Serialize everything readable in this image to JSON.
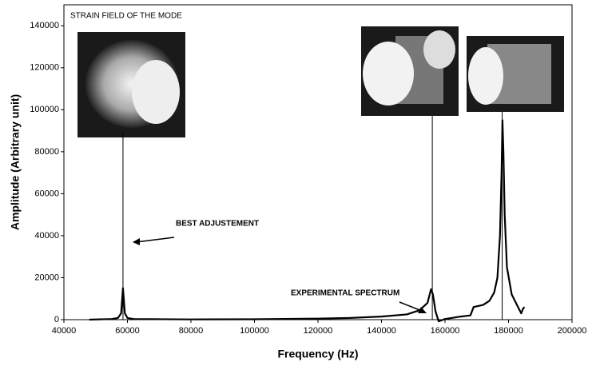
{
  "chart_data": {
    "type": "line",
    "x_label": "Frequency (Hz)",
    "y_label": "Amplitude (Arbitrary unit)",
    "annotations": [
      "STRAIN FIELD OF THE MODE"
    ],
    "xlim": [
      40000,
      200000
    ],
    "xticks": [
      40000,
      60000,
      80000,
      100000,
      120000,
      140000,
      160000,
      180000,
      200000
    ],
    "ylim": [
      0,
      150000
    ],
    "yticks": [
      0,
      20000,
      40000,
      60000,
      80000,
      100000,
      120000,
      140000
    ],
    "series": [
      {
        "name": "EXPERIMENTAL SPECTRUM",
        "color": "#000000",
        "x": [
          48000,
          55000,
          57000,
          58000,
          58600,
          59200,
          60000,
          62000,
          80000,
          100000,
          120000,
          130000,
          140000,
          148000,
          152000,
          154500,
          155600,
          156200,
          157000,
          158000,
          160000,
          165000,
          168000,
          169000,
          172000,
          174000,
          175500,
          176500,
          177300,
          177800,
          178100,
          178400,
          178800,
          179500,
          181000,
          183000,
          184000,
          184500,
          185000
        ],
        "values": [
          0,
          300,
          800,
          3000,
          15000,
          3000,
          800,
          300,
          100,
          200,
          500,
          800,
          1500,
          2500,
          4500,
          8000,
          14500,
          12000,
          4000,
          -800,
          300,
          1500,
          2000,
          6000,
          7000,
          9000,
          13000,
          20000,
          40000,
          70000,
          95000,
          80000,
          50000,
          25000,
          12000,
          6000,
          3000,
          5000,
          6000
        ]
      },
      {
        "name": "BEST ADJUSTEMENT",
        "color": "#000000",
        "x": [
          58600,
          156000,
          178000
        ],
        "values": [
          89000,
          97000,
          99000
        ]
      }
    ]
  }
}
